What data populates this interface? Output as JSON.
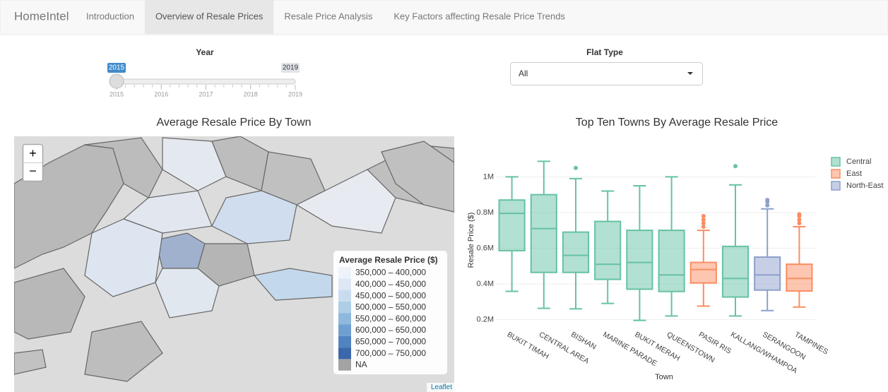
{
  "nav": {
    "brand": "HomeIntel",
    "tabs": [
      "Introduction",
      "Overview of Resale Prices",
      "Resale Price Analysis",
      "Key Factors affecting Resale Price Trends"
    ],
    "active": 1
  },
  "controls": {
    "year": {
      "label": "Year",
      "min": 2015,
      "max": 2019,
      "value": 2015,
      "ticks": [
        2015,
        2016,
        2017,
        2018,
        2019
      ]
    },
    "flat_type": {
      "label": "Flat Type",
      "selected": "All"
    }
  },
  "map": {
    "title": "Average Resale Price By Town",
    "zoom_in": "+",
    "zoom_out": "−",
    "attribution": "Leaflet",
    "legend": {
      "title": "Average Resale Price ($)",
      "items": [
        {
          "label": "350,000 – 400,000",
          "color": "#eef3fa"
        },
        {
          "label": "400,000 – 450,000",
          "color": "#dde8f4"
        },
        {
          "label": "450,000 – 500,000",
          "color": "#c9dcef"
        },
        {
          "label": "500,000 – 550,000",
          "color": "#aecde6"
        },
        {
          "label": "550,000 – 600,000",
          "color": "#8fb8dc"
        },
        {
          "label": "600,000 – 650,000",
          "color": "#6f9fd0"
        },
        {
          "label": "650,000 – 700,000",
          "color": "#5283c1"
        },
        {
          "label": "700,000 – 750,000",
          "color": "#3b67ab"
        },
        {
          "label": "NA",
          "color": "#a3a3a3"
        }
      ]
    }
  },
  "chart_data": {
    "type": "box",
    "title": "Top Ten Towns By Average Resale Price",
    "x_label": "Town",
    "y_label": "Resale Price ($)",
    "categories": [
      "BUKIT TIMAH",
      "CENTRAL AREA",
      "BISHAN",
      "MARINE PARADE",
      "BUKIT MERAH",
      "QUEENSTOWN",
      "PASIR RIS",
      "KALLANG/WHAMPOA",
      "SERANGOON",
      "TAMPINES"
    ],
    "ylim": [
      150000,
      1140000
    ],
    "yticks": [
      {
        "value": 200000,
        "label": "0.2M"
      },
      {
        "value": 400000,
        "label": "0.4M"
      },
      {
        "value": 600000,
        "label": "0.6M"
      },
      {
        "value": 800000,
        "label": "0.8M"
      },
      {
        "value": 1000000,
        "label": "1M"
      }
    ],
    "grid": true,
    "series": [
      {
        "name": "Central",
        "color": "#66c2a5",
        "values": [
          {
            "min": 358000,
            "q1": 586000,
            "median": 795000,
            "q3": 870000,
            "max": 1000000,
            "outliers": []
          },
          {
            "min": 263000,
            "q1": 464000,
            "median": 710000,
            "q3": 900000,
            "max": 1087000,
            "outliers": []
          },
          {
            "min": 260000,
            "q1": 464000,
            "median": 560000,
            "q3": 690000,
            "max": 990000,
            "outliers": [
              1050000
            ]
          },
          {
            "min": 290000,
            "q1": 425000,
            "median": 510000,
            "q3": 750000,
            "max": 920000,
            "outliers": []
          },
          {
            "min": 195000,
            "q1": 370000,
            "median": 520000,
            "q3": 700000,
            "max": 950000,
            "outliers": []
          },
          {
            "min": 220000,
            "q1": 357000,
            "median": 450000,
            "q3": 700000,
            "max": 1000000,
            "outliers": []
          },
          null,
          {
            "min": 220000,
            "q1": 326000,
            "median": 430000,
            "q3": 610000,
            "max": 955000,
            "outliers": [
              1060000
            ]
          },
          null,
          null
        ]
      },
      {
        "name": "East",
        "color": "#fc8d62",
        "values": [
          null,
          null,
          null,
          null,
          null,
          null,
          {
            "min": 275000,
            "q1": 405000,
            "median": 480000,
            "q3": 520000,
            "max": 700000,
            "outliers": [
              720000,
              740000,
              760000,
              780000
            ]
          },
          null,
          null,
          {
            "min": 270000,
            "q1": 360000,
            "median": 430000,
            "q3": 510000,
            "max": 720000,
            "outliers": [
              740000,
              760000,
              780000,
              790000
            ]
          }
        ]
      },
      {
        "name": "North-East",
        "color": "#8da0cb",
        "values": [
          null,
          null,
          null,
          null,
          null,
          null,
          null,
          null,
          {
            "min": 250000,
            "q1": 365000,
            "median": 450000,
            "q3": 550000,
            "max": 820000,
            "outliers": [
              840000,
              860000,
              870000
            ]
          },
          null
        ]
      }
    ]
  }
}
